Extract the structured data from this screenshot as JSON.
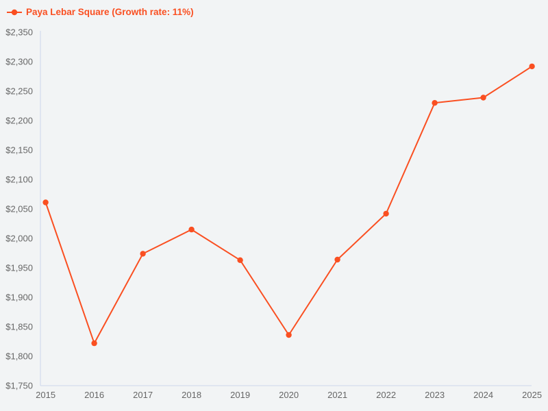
{
  "legend": {
    "label": "Paya Lebar Square (Growth rate: 11%)"
  },
  "chart_data": {
    "type": "line",
    "title": "",
    "categories": [
      "2015",
      "2016",
      "2017",
      "2018",
      "2019",
      "2020",
      "2021",
      "2022",
      "2023",
      "2024",
      "2025"
    ],
    "series": [
      {
        "name": "Paya Lebar Square (Growth rate: 11%)",
        "values": [
          2061,
          1822,
          1974,
          2015,
          1963,
          1836,
          1964,
          2042,
          2230,
          2239,
          2292
        ],
        "color": "#fa4f21"
      }
    ],
    "xlabel": "",
    "ylabel": "",
    "ylim": [
      1750,
      2350
    ],
    "ytick_step": 50,
    "ytick_prefix": "$",
    "ytick_labels": [
      "$1,750",
      "$1,800",
      "$1,850",
      "$1,900",
      "$1,950",
      "$2,000",
      "$2,050",
      "$2,100",
      "$2,150",
      "$2,200",
      "$2,250",
      "$2,300",
      "$2,350"
    ],
    "grid": false,
    "legend_position": "top-left",
    "colors": {
      "background": "#f2f4f5",
      "axis_line": "#ccd6eb",
      "tick_label": "#666666"
    }
  }
}
